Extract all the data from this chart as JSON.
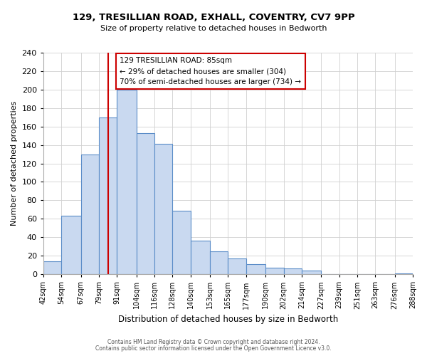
{
  "title": "129, TRESILLIAN ROAD, EXHALL, COVENTRY, CV7 9PP",
  "subtitle": "Size of property relative to detached houses in Bedworth",
  "xlabel": "Distribution of detached houses by size in Bedworth",
  "ylabel": "Number of detached properties",
  "bin_edges": [
    42,
    54,
    67,
    79,
    91,
    104,
    116,
    128,
    140,
    153,
    165,
    177,
    190,
    202,
    214,
    227,
    239,
    251,
    263,
    276,
    288
  ],
  "bar_heights": [
    14,
    63,
    130,
    170,
    200,
    153,
    141,
    69,
    36,
    25,
    17,
    11,
    7,
    6,
    4,
    0,
    0,
    0,
    0,
    1
  ],
  "bar_color": "#c9d9f0",
  "bar_edge_color": "#5b8dc8",
  "property_line_x": 85,
  "property_line_color": "#cc0000",
  "annotation_line1": "129 TRESILLIAN ROAD: 85sqm",
  "annotation_line2": "← 29% of detached houses are smaller (304)",
  "annotation_line3": "70% of semi-detached houses are larger (734) →",
  "annotation_box_color": "#ffffff",
  "annotation_box_edge": "#cc0000",
  "ylim": [
    0,
    240
  ],
  "yticks": [
    0,
    20,
    40,
    60,
    80,
    100,
    120,
    140,
    160,
    180,
    200,
    220,
    240
  ],
  "tick_labels": [
    "42sqm",
    "54sqm",
    "67sqm",
    "79sqm",
    "91sqm",
    "104sqm",
    "116sqm",
    "128sqm",
    "140sqm",
    "153sqm",
    "165sqm",
    "177sqm",
    "190sqm",
    "202sqm",
    "214sqm",
    "227sqm",
    "239sqm",
    "251sqm",
    "263sqm",
    "276sqm",
    "288sqm"
  ],
  "footer_line1": "Contains HM Land Registry data © Crown copyright and database right 2024.",
  "footer_line2": "Contains public sector information licensed under the Open Government Licence v3.0.",
  "background_color": "#ffffff",
  "grid_color": "#d0d0d0"
}
